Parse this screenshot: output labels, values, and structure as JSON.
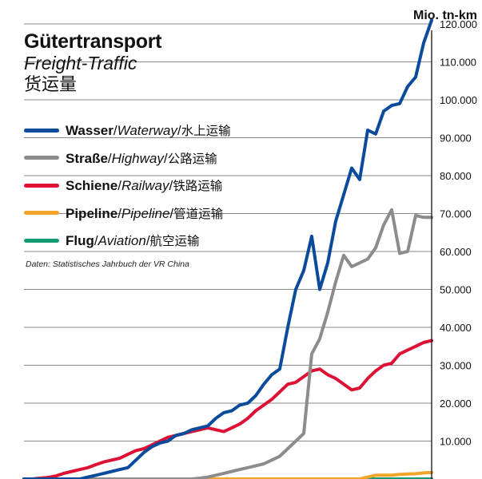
{
  "title": {
    "de": "Gütertransport",
    "en": "Freight-Traffic",
    "zh": "货运量"
  },
  "source": "Daten: Statistisches Jahrbuch der VR China",
  "unit": "Mio. tn-km",
  "legend": [
    {
      "de": "Wasser",
      "en": "Waterway",
      "zh": "水上运输",
      "color": "#0a4b9b"
    },
    {
      "de": "Straße",
      "en": "Highway",
      "zh": "公路运输",
      "color": "#8c8c8c"
    },
    {
      "de": "Schiene",
      "en": "Railway",
      "zh": "铁路运输",
      "color": "#dd1133"
    },
    {
      "de": "Pipeline",
      "en": "Pipeline",
      "zh": "管道运输",
      "color": "#f2a52a"
    },
    {
      "de": "Flug",
      "en": "Aviation",
      "zh": "航空运输",
      "color": "#159a72"
    }
  ],
  "chart_data": {
    "type": "line",
    "ylabel": "Mio. tn-km",
    "ylim": [
      0,
      125000
    ],
    "yticks": [
      "10.000",
      "20.000",
      "30.000",
      "40.000",
      "50.000",
      "60.000",
      "70.000",
      "80.000",
      "90.000",
      "100.000",
      "110.000",
      "120.000"
    ],
    "grid": true,
    "x": [
      1,
      2,
      3,
      4,
      5,
      6,
      7,
      8,
      9,
      10,
      11,
      12,
      13,
      14,
      15,
      16,
      17,
      18,
      19,
      20,
      21,
      22,
      23,
      24,
      25,
      26,
      27,
      28,
      29,
      30,
      31,
      32,
      33,
      34,
      35,
      36,
      37,
      38,
      39,
      40,
      41,
      42,
      43,
      44,
      45,
      46,
      47,
      48,
      49,
      50,
      51,
      52
    ],
    "series": [
      {
        "name": "Wasser / Waterway",
        "color": "#0a4b9b",
        "values": [
          0,
          0,
          0,
          0,
          0,
          0,
          0,
          0,
          500,
          1000,
          1500,
          2000,
          2500,
          3000,
          5000,
          7000,
          8500,
          9500,
          10000,
          11500,
          12000,
          13000,
          13500,
          14000,
          16000,
          17500,
          18000,
          19500,
          20000,
          22000,
          25000,
          27500,
          29000,
          40000,
          50000,
          55000,
          64000,
          50000,
          57000,
          68000,
          75000,
          82000,
          79000,
          92000,
          91000,
          97000,
          98500,
          99000,
          103500,
          106000,
          115000,
          121000
        ]
      },
      {
        "name": "Straße / Highway",
        "color": "#8c8c8c",
        "values": [
          0,
          0,
          0,
          0,
          0,
          0,
          0,
          0,
          0,
          0,
          0,
          0,
          0,
          0,
          0,
          0,
          0,
          0,
          0,
          0,
          0,
          0,
          200,
          500,
          1000,
          1500,
          2000,
          2500,
          3000,
          3500,
          4000,
          5000,
          6000,
          8000,
          10000,
          12000,
          33000,
          37000,
          44000,
          52000,
          59000,
          56000,
          57000,
          58000,
          61000,
          67000,
          71000,
          59500,
          60000,
          69500,
          69000,
          69000
        ]
      },
      {
        "name": "Schiene / Railway",
        "color": "#dd1133",
        "values": [
          0,
          0,
          200,
          400,
          800,
          1500,
          2000,
          2500,
          3000,
          3800,
          4500,
          5000,
          5500,
          6500,
          7500,
          8000,
          9000,
          10000,
          11000,
          11500,
          12000,
          12500,
          13000,
          13500,
          13000,
          12500,
          13500,
          14500,
          16000,
          18000,
          19500,
          21000,
          23000,
          25000,
          25500,
          27000,
          28500,
          29000,
          27500,
          26500,
          25000,
          23500,
          24000,
          26500,
          28500,
          30000,
          30500,
          33000,
          34000,
          35000,
          36000,
          36500
        ]
      },
      {
        "name": "Pipeline / Pipeline",
        "color": "#f2a52a",
        "values": [
          0,
          0,
          0,
          0,
          0,
          0,
          0,
          0,
          0,
          0,
          0,
          0,
          0,
          0,
          0,
          0,
          0,
          0,
          0,
          0,
          0,
          0,
          0,
          0,
          0,
          0,
          0,
          0,
          0,
          0,
          0,
          0,
          0,
          0,
          0,
          0,
          0,
          0,
          0,
          0,
          0,
          0,
          0,
          500,
          1000,
          1000,
          1000,
          1200,
          1300,
          1400,
          1600,
          1700
        ]
      },
      {
        "name": "Flug / Aviation",
        "color": "#159a72",
        "values": [
          0,
          0,
          0,
          0,
          0,
          0,
          0,
          0,
          0,
          0,
          0,
          0,
          0,
          0,
          0,
          0,
          0,
          0,
          0,
          0,
          0,
          0,
          0,
          0,
          0,
          0,
          0,
          0,
          0,
          0,
          0,
          0,
          0,
          0,
          0,
          0,
          0,
          0,
          0,
          0,
          0,
          0,
          0,
          0,
          0,
          0,
          0,
          0,
          0,
          0,
          0,
          0
        ]
      }
    ]
  }
}
